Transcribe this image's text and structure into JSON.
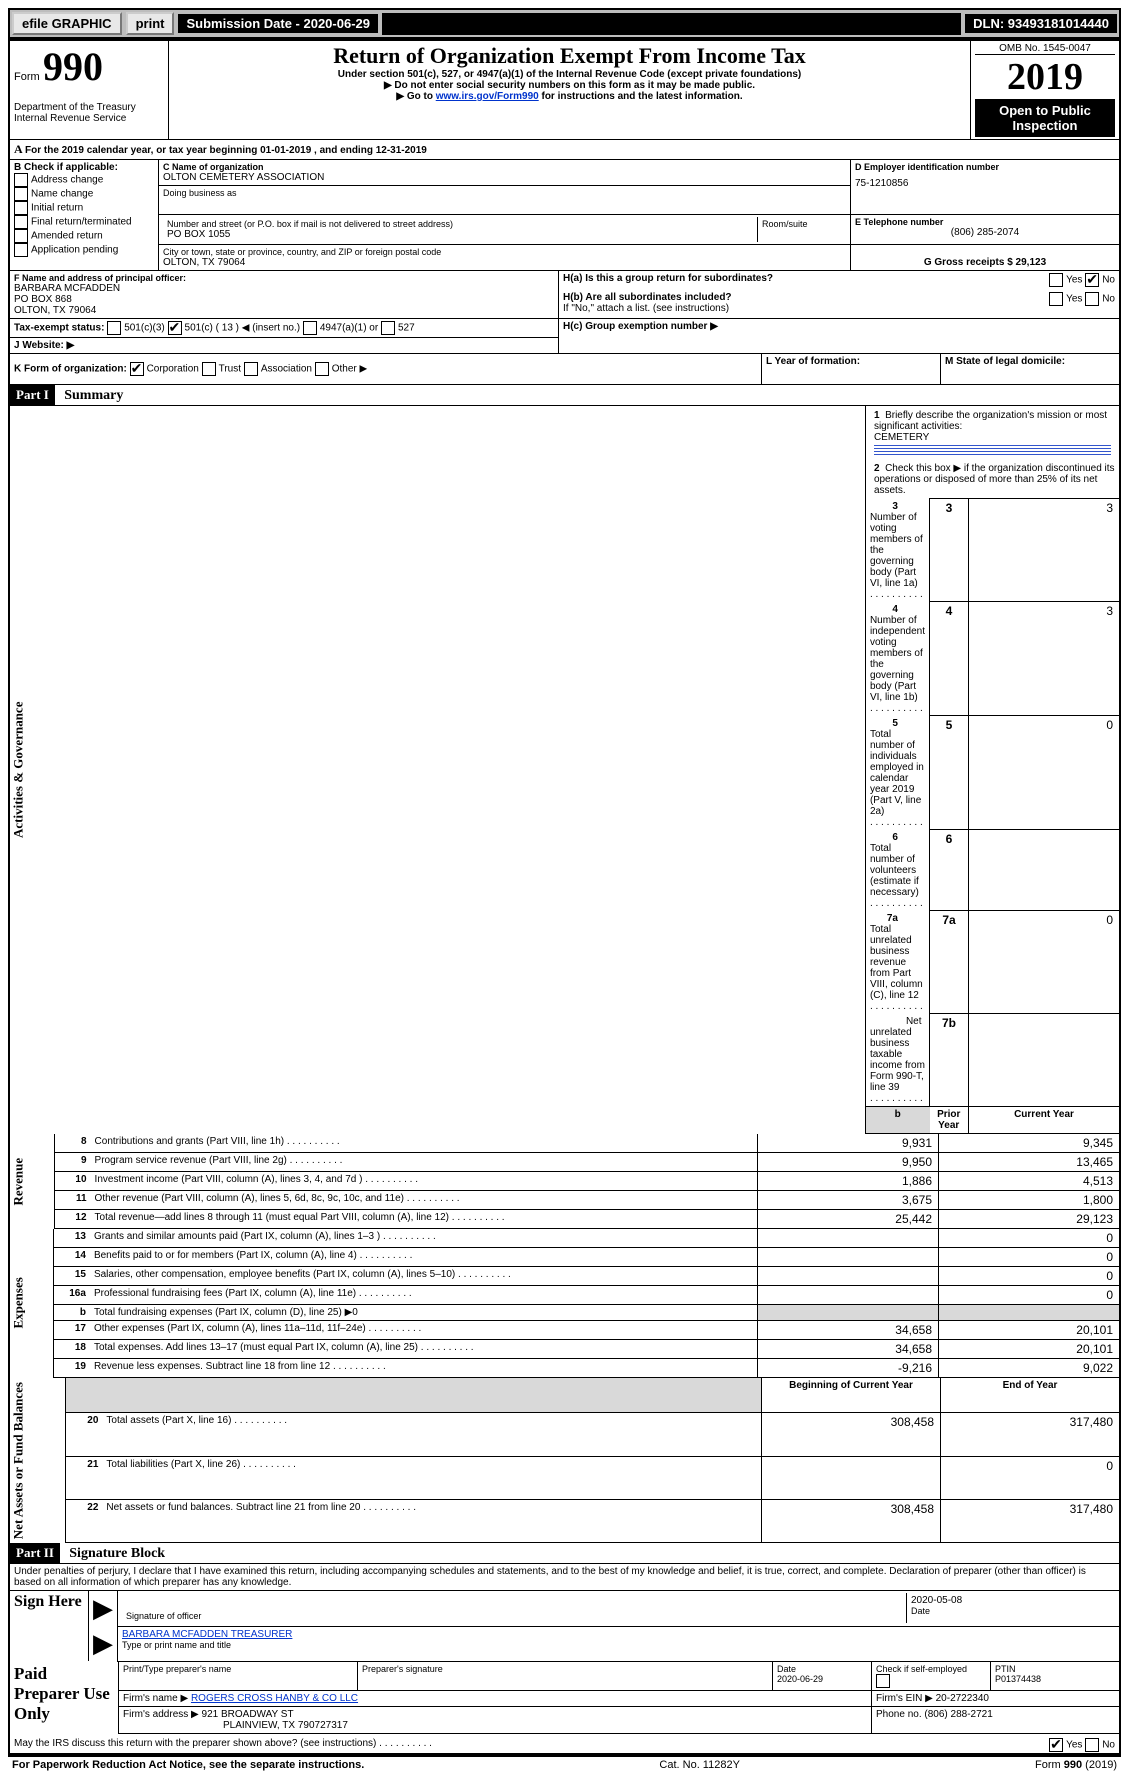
{
  "topbar": {
    "efile": "efile GRAPHIC",
    "print": "print",
    "sub_label": "Submission Date - 2020-06-29",
    "dln": "DLN: 93493181014440"
  },
  "hdr": {
    "form": "Form",
    "num": "990",
    "title": "Return of Organization Exempt From Income Tax",
    "sub1": "Under section 501(c), 527, or 4947(a)(1) of the Internal Revenue Code (except private foundations)",
    "sub2": "▶ Do not enter social security numbers on this form as it may be made public.",
    "sub3_pre": "▶ Go to ",
    "sub3_link": "www.irs.gov/Form990",
    "sub3_post": " for instructions and the latest information.",
    "dept1": "Department of the Treasury",
    "dept2": "Internal Revenue Service",
    "omb": "OMB No. 1545-0047",
    "year": "2019",
    "open": "Open to Public Inspection"
  },
  "A": {
    "text": "For the 2019 calendar year, or tax year beginning 01-01-2019    , and ending 12-31-2019"
  },
  "B": {
    "label": "B Check if applicable:",
    "items": [
      "Address change",
      "Name change",
      "Initial return",
      "Final return/terminated",
      "Amended return",
      "Application pending"
    ]
  },
  "C": {
    "name_lbl": "C Name of organization",
    "name": "OLTON CEMETERY ASSOCIATION",
    "dba_lbl": "Doing business as",
    "street_lbl": "Number and street (or P.O. box if mail is not delivered to street address)",
    "room_lbl": "Room/suite",
    "street": "PO BOX 1055",
    "city_lbl": "City or town, state or province, country, and ZIP or foreign postal code",
    "city": "OLTON, TX  79064"
  },
  "D": {
    "lbl": "D Employer identification number",
    "val": "75-1210856"
  },
  "E": {
    "lbl": "E Telephone number",
    "val": "(806) 285-2074"
  },
  "G": {
    "lbl": "G Gross receipts $ 29,123"
  },
  "F": {
    "lbl": "F  Name and address of principal officer:",
    "l1": "BARBARA MCFADDEN",
    "l2": "PO BOX 868",
    "l3": "OLTON, TX  79064"
  },
  "H": {
    "a_lbl": "H(a)  Is this a group return for subordinates?",
    "a_yes": "Yes",
    "a_no": "No",
    "b_lbl": "H(b)  Are all subordinates included?",
    "b_yes": "Yes",
    "b_no": "No",
    "b_note": "If \"No,\" attach a list. (see instructions)",
    "c_lbl": "H(c)  Group exemption number ▶"
  },
  "I": {
    "lbl": "Tax-exempt status:",
    "o1": "501(c)(3)",
    "o2": "501(c) ( 13 ) ◀ (insert no.)",
    "o3": "4947(a)(1) or",
    "o4": "527"
  },
  "J": {
    "lbl": "J   Website: ▶"
  },
  "K": {
    "lbl": "K Form of organization:",
    "o1": "Corporation",
    "o2": "Trust",
    "o3": "Association",
    "o4": "Other ▶"
  },
  "L": {
    "lbl": "L Year of formation:"
  },
  "M": {
    "lbl": "M State of legal domicile:"
  },
  "partI": {
    "hdr": "Part I",
    "title": "Summary",
    "l1": "Briefly describe the organization's mission or most significant activities:",
    "l1v": "CEMETERY",
    "l2": "Check this box ▶        if the organization discontinued its operations or disposed of more than 25% of its net assets.",
    "rows": [
      {
        "n": "3",
        "t": "Number of voting members of the governing body (Part VI, line 1a)",
        "c": "3",
        "v": "3"
      },
      {
        "n": "4",
        "t": "Number of independent voting members of the governing body (Part VI, line 1b)",
        "c": "4",
        "v": "3"
      },
      {
        "n": "5",
        "t": "Total number of individuals employed in calendar year 2019 (Part V, line 2a)",
        "c": "5",
        "v": "0"
      },
      {
        "n": "6",
        "t": "Total number of volunteers (estimate if necessary)",
        "c": "6",
        "v": ""
      },
      {
        "n": "7a",
        "t": "Total unrelated business revenue from Part VIII, column (C), line 12",
        "c": "7a",
        "v": "0"
      },
      {
        "n": "",
        "t": "Net unrelated business taxable income from Form 990-T, line 39",
        "c": "7b",
        "v": ""
      }
    ],
    "prior": "Prior Year",
    "current": "Current Year",
    "rev": [
      {
        "n": "8",
        "t": "Contributions and grants (Part VIII, line 1h)",
        "p": "9,931",
        "c": "9,345"
      },
      {
        "n": "9",
        "t": "Program service revenue (Part VIII, line 2g)",
        "p": "9,950",
        "c": "13,465"
      },
      {
        "n": "10",
        "t": "Investment income (Part VIII, column (A), lines 3, 4, and 7d )",
        "p": "1,886",
        "c": "4,513"
      },
      {
        "n": "11",
        "t": "Other revenue (Part VIII, column (A), lines 5, 6d, 8c, 9c, 10c, and 11e)",
        "p": "3,675",
        "c": "1,800"
      },
      {
        "n": "12",
        "t": "Total revenue—add lines 8 through 11 (must equal Part VIII, column (A), line 12)",
        "p": "25,442",
        "c": "29,123"
      }
    ],
    "exp": [
      {
        "n": "13",
        "t": "Grants and similar amounts paid (Part IX, column (A), lines 1–3 )",
        "p": "",
        "c": "0"
      },
      {
        "n": "14",
        "t": "Benefits paid to or for members (Part IX, column (A), line 4)",
        "p": "",
        "c": "0"
      },
      {
        "n": "15",
        "t": "Salaries, other compensation, employee benefits (Part IX, column (A), lines 5–10)",
        "p": "",
        "c": "0"
      },
      {
        "n": "16a",
        "t": "Professional fundraising fees (Part IX, column (A), line 11e)",
        "p": "",
        "c": "0"
      },
      {
        "n": "b",
        "t": "Total fundraising expenses (Part IX, column (D), line 25) ▶0",
        "p": "shade",
        "c": "shade"
      },
      {
        "n": "17",
        "t": "Other expenses (Part IX, column (A), lines 11a–11d, 11f–24e)",
        "p": "34,658",
        "c": "20,101"
      },
      {
        "n": "18",
        "t": "Total expenses. Add lines 13–17 (must equal Part IX, column (A), line 25)",
        "p": "34,658",
        "c": "20,101"
      },
      {
        "n": "19",
        "t": "Revenue less expenses. Subtract line 18 from line 12",
        "p": "-9,216",
        "c": "9,022"
      }
    ],
    "bcy": "Beginning of Current Year",
    "eoy": "End of Year",
    "net": [
      {
        "n": "20",
        "t": "Total assets (Part X, line 16)",
        "p": "308,458",
        "c": "317,480"
      },
      {
        "n": "21",
        "t": "Total liabilities (Part X, line 26)",
        "p": "",
        "c": "0"
      },
      {
        "n": "22",
        "t": "Net assets or fund balances. Subtract line 21 from line 20",
        "p": "308,458",
        "c": "317,480"
      }
    ],
    "side_gov": "Activities & Governance",
    "side_rev": "Revenue",
    "side_exp": "Expenses",
    "side_net": "Net Assets or Fund Balances"
  },
  "partII": {
    "hdr": "Part II",
    "title": "Signature Block",
    "decl": "Under penalties of perjury, I declare that I have examined this return, including accompanying schedules and statements, and to the best of my knowledge and belief, it is true, correct, and complete. Declaration of preparer (other than officer) is based on all information of which preparer has any knowledge.",
    "sign_here": "Sign Here",
    "sig_off": "Signature of officer",
    "date": "Date",
    "date_v": "2020-05-08",
    "typed": "BARBARA MCFADDEN  TREASURER",
    "typed_lbl": "Type or print name and title",
    "paid": "Paid Preparer Use Only",
    "pp_name_lbl": "Print/Type preparer's name",
    "pp_sig_lbl": "Preparer's signature",
    "pp_date_lbl": "Date",
    "pp_date": "2020-06-29",
    "pp_check": "Check        if self-employed",
    "ptin_lbl": "PTIN",
    "ptin": "P01374438",
    "firm_name_lbl": "Firm's name    ▶",
    "firm_name": "ROGERS CROSS HANBY & CO LLC",
    "firm_ein_lbl": "Firm's EIN ▶",
    "firm_ein": "20-2722340",
    "firm_addr_lbl": "Firm's address ▶",
    "firm_addr1": "921 BROADWAY ST",
    "firm_addr2": "PLAINVIEW, TX  790727317",
    "phone_lbl": "Phone no.",
    "phone": "(806) 288-2721",
    "discuss": "May the IRS discuss this return with the preparer shown above? (see instructions)",
    "d_yes": "Yes",
    "d_no": "No"
  },
  "foot": {
    "l": "For Paperwork Reduction Act Notice, see the separate instructions.",
    "c": "Cat. No. 11282Y",
    "r": "Form 990 (2019)"
  }
}
